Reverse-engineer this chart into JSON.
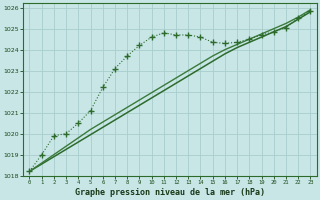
{
  "title": "Graphe pression niveau de la mer (hPa)",
  "background_color": "#c8e6e6",
  "grid_color": "#a8cece",
  "line_color_dark": "#2d6b2d",
  "line_color_med": "#3a7a3a",
  "x_ticks": [
    0,
    1,
    2,
    3,
    4,
    5,
    6,
    7,
    8,
    9,
    10,
    11,
    12,
    13,
    14,
    15,
    16,
    17,
    18,
    19,
    20,
    21,
    22,
    23
  ],
  "ylim": [
    1018.0,
    1026.2
  ],
  "yticks": [
    1018,
    1019,
    1020,
    1021,
    1022,
    1023,
    1024,
    1025,
    1026
  ],
  "series_curved": {
    "x": [
      0,
      1,
      2,
      3,
      4,
      5,
      6,
      7,
      8,
      9,
      10,
      11,
      12,
      13,
      14,
      15,
      16,
      17,
      18,
      19,
      20,
      21,
      22,
      23
    ],
    "y": [
      1018.2,
      1019.0,
      1019.9,
      1020.0,
      1020.5,
      1021.1,
      1022.2,
      1023.1,
      1023.7,
      1024.2,
      1024.6,
      1024.8,
      1024.7,
      1024.7,
      1024.6,
      1024.35,
      1024.3,
      1024.35,
      1024.5,
      1024.7,
      1024.85,
      1025.05,
      1025.5,
      1025.85
    ]
  },
  "series_linear1": {
    "x": [
      0,
      1,
      2,
      3,
      4,
      5,
      6,
      7,
      8,
      9,
      10,
      11,
      12,
      13,
      14,
      15,
      16,
      17,
      18,
      19,
      20,
      21,
      22,
      23
    ],
    "y": [
      1018.2,
      1018.55,
      1018.9,
      1019.25,
      1019.6,
      1019.95,
      1020.3,
      1020.65,
      1021.0,
      1021.35,
      1021.7,
      1022.05,
      1022.4,
      1022.75,
      1023.1,
      1023.45,
      1023.8,
      1024.1,
      1024.35,
      1024.6,
      1024.85,
      1025.1,
      1025.45,
      1025.8
    ]
  },
  "series_linear2": {
    "x": [
      0,
      1,
      2,
      3,
      4,
      5,
      6,
      7,
      8,
      9,
      10,
      11,
      12,
      13,
      14,
      15,
      16,
      17,
      18,
      19,
      20,
      21,
      22,
      23
    ],
    "y": [
      1018.2,
      1018.6,
      1019.0,
      1019.4,
      1019.8,
      1020.2,
      1020.55,
      1020.9,
      1021.25,
      1021.6,
      1021.95,
      1022.3,
      1022.65,
      1023.0,
      1023.35,
      1023.7,
      1024.0,
      1024.25,
      1024.5,
      1024.75,
      1025.0,
      1025.25,
      1025.55,
      1025.9
    ]
  },
  "figsize": [
    3.2,
    2.0
  ],
  "dpi": 100
}
